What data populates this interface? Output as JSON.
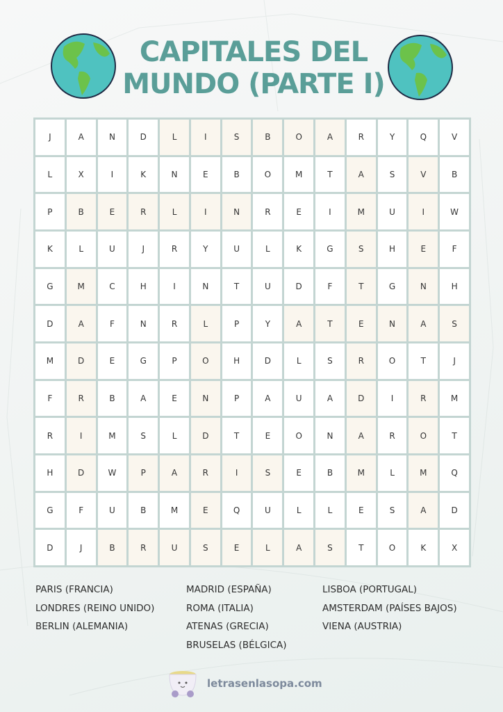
{
  "title": {
    "line1": "CAPITALES DEL",
    "line2": "MUNDO (PARTE I)"
  },
  "colors": {
    "title": "#5a9e98",
    "grid_line": "#c3d5d2",
    "highlight": "#faf6ee",
    "site": "#7d8a9c"
  },
  "icons": {
    "left_globe": "globe-icon",
    "right_globe": "globe-icon",
    "logo": "soup-bowl-icon"
  },
  "grid": {
    "rows": [
      "JANDLISBOARYQV",
      "LXIKNEBOMTASVB",
      "PBERLINREIMUIW",
      "KLUJRYULKGSHEF",
      "GMCHINTUDFTGNH",
      "DAFNRLPYATENAS",
      "MDEGPOHDLSROTJ",
      "FRBAENPAUADIRM",
      "RIMSLDTEONAROT",
      "HDWPARISEBMLMQ",
      "GFUBMEQULLESAD",
      "DJBRUSELASTOKX"
    ],
    "highlight_mask": [
      "00001111110000",
      "00000000001010",
      "01111110001010",
      "00000000001010",
      "01000000001010",
      "01000100111111",
      "01000100001000",
      "01000100001010",
      "01000100001010",
      "01011111001010",
      "00000100000010",
      "00111111110000"
    ]
  },
  "word_list": {
    "columns": [
      [
        "PARIS (FRANCIA)",
        "LONDRES (REINO UNIDO)",
        "BERLIN (ALEMANIA)"
      ],
      [
        "MADRID (ESPAÑA)",
        "ROMA (ITALIA)",
        "ATENAS (GRECIA)",
        "BRUSELAS (BÉLGICA)"
      ],
      [
        "LISBOA (PORTUGAL)",
        "AMSTERDAM (PAÍSES BAJOS)",
        "VIENA (AUSTRIA)"
      ]
    ]
  },
  "footer": {
    "site": "letrasenlasopa.com"
  }
}
